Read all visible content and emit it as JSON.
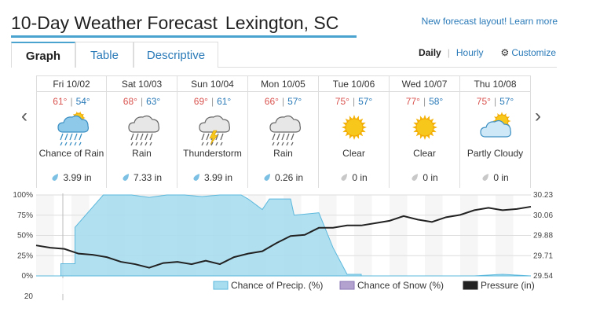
{
  "header": {
    "title": "10-Day Weather Forecast",
    "location": "Lexington, SC",
    "new_layout": "New forecast layout! Learn more"
  },
  "tabs": [
    {
      "label": "Graph",
      "active": true
    },
    {
      "label": "Table",
      "active": false
    },
    {
      "label": "Descriptive",
      "active": false
    }
  ],
  "views": {
    "daily": "Daily",
    "hourly": "Hourly",
    "customize": "Customize",
    "sep": "|"
  },
  "nav": {
    "prev": "‹",
    "next": "›"
  },
  "days": [
    {
      "name": "Fri 10/02",
      "hi": "61°",
      "lo": "54°",
      "cond": "Chance of Rain",
      "precip": "3.99 in",
      "icon": "chance-rain-icon"
    },
    {
      "name": "Sat 10/03",
      "hi": "68°",
      "lo": "63°",
      "cond": "Rain",
      "precip": "7.33 in",
      "icon": "rain-icon"
    },
    {
      "name": "Sun 10/04",
      "hi": "69°",
      "lo": "61°",
      "cond": "Thunderstorm",
      "precip": "3.99 in",
      "icon": "thunderstorm-icon"
    },
    {
      "name": "Mon 10/05",
      "hi": "66°",
      "lo": "57°",
      "cond": "Rain",
      "precip": "0.26 in",
      "icon": "rain-icon"
    },
    {
      "name": "Tue 10/06",
      "hi": "75°",
      "lo": "57°",
      "cond": "Clear",
      "precip": "0 in",
      "icon": "sun-icon"
    },
    {
      "name": "Wed 10/07",
      "hi": "77°",
      "lo": "58°",
      "cond": "Clear",
      "precip": "0 in",
      "icon": "sun-icon"
    },
    {
      "name": "Thu 10/08",
      "hi": "75°",
      "lo": "57°",
      "cond": "Partly Cloudy",
      "precip": "0 in",
      "icon": "partly-cloudy-icon"
    }
  ],
  "chart_data": {
    "type": "area",
    "x_days": [
      "Fri 10/02",
      "Sat 10/03",
      "Sun 10/04",
      "Mon 10/05",
      "Tue 10/06",
      "Wed 10/07",
      "Thu 10/08"
    ],
    "left_ticks": [
      "100%",
      "75%",
      "50%",
      "25%",
      "0%",
      "20"
    ],
    "right_ticks": [
      "30.23",
      "30.06",
      "29.88",
      "29.71",
      "29.54"
    ],
    "left_range": [
      0,
      100
    ],
    "right_range": [
      29.54,
      30.23
    ],
    "series": [
      {
        "name": "Chance of Precip. (%)",
        "color": "#a8ddf0",
        "stroke": "#5bb8dc",
        "days": [
          0,
          0.35,
          0.35,
          0.55,
          0.55,
          0.95,
          1.1,
          1.35,
          1.6,
          1.85,
          2.1,
          2.35,
          2.6,
          2.9,
          3.0,
          3.2,
          3.3,
          3.6,
          3.65,
          4.0,
          4.2,
          4.4,
          4.6,
          4.6,
          5.0,
          5.4,
          5.8,
          6.2,
          6.6,
          7.0
        ],
        "values": [
          0,
          0,
          15,
          15,
          60,
          100,
          100,
          100,
          97,
          100,
          100,
          98,
          100,
          100,
          95,
          82,
          95,
          95,
          75,
          78,
          35,
          2,
          2,
          0,
          0,
          0,
          0,
          0,
          2,
          0
        ]
      },
      {
        "name": "Chance of Snow (%)",
        "color": "#b3a2cf",
        "stroke": "#8a74b5",
        "days": [],
        "values": []
      },
      {
        "name": "Pressure (in)",
        "color": "#222222",
        "stroke": "#222222",
        "days": [
          0,
          0.2,
          0.4,
          0.6,
          0.8,
          1.0,
          1.2,
          1.4,
          1.6,
          1.8,
          2.0,
          2.2,
          2.4,
          2.6,
          2.8,
          3.0,
          3.2,
          3.4,
          3.6,
          3.8,
          4.0,
          4.2,
          4.4,
          4.6,
          4.8,
          5.0,
          5.2,
          5.4,
          5.6,
          5.8,
          6.0,
          6.2,
          6.4,
          6.6,
          6.8,
          7.0
        ],
        "values": [
          29.8,
          29.78,
          29.77,
          29.73,
          29.72,
          29.7,
          29.66,
          29.64,
          29.61,
          29.65,
          29.66,
          29.64,
          29.67,
          29.64,
          29.7,
          29.73,
          29.75,
          29.82,
          29.88,
          29.89,
          29.95,
          29.95,
          29.97,
          29.97,
          29.99,
          30.01,
          30.05,
          30.02,
          30.0,
          30.04,
          30.06,
          30.1,
          30.12,
          30.1,
          30.11,
          30.13
        ]
      }
    ],
    "legend": [
      {
        "label": "Chance of Precip. (%)",
        "color": "#a8ddf0",
        "stroke": "#5bb8dc"
      },
      {
        "label": "Chance of Snow (%)",
        "color": "#b3a2cf",
        "stroke": "#8a74b5"
      },
      {
        "label": "Pressure (in)",
        "color": "#222222",
        "stroke": "#222222"
      }
    ]
  }
}
